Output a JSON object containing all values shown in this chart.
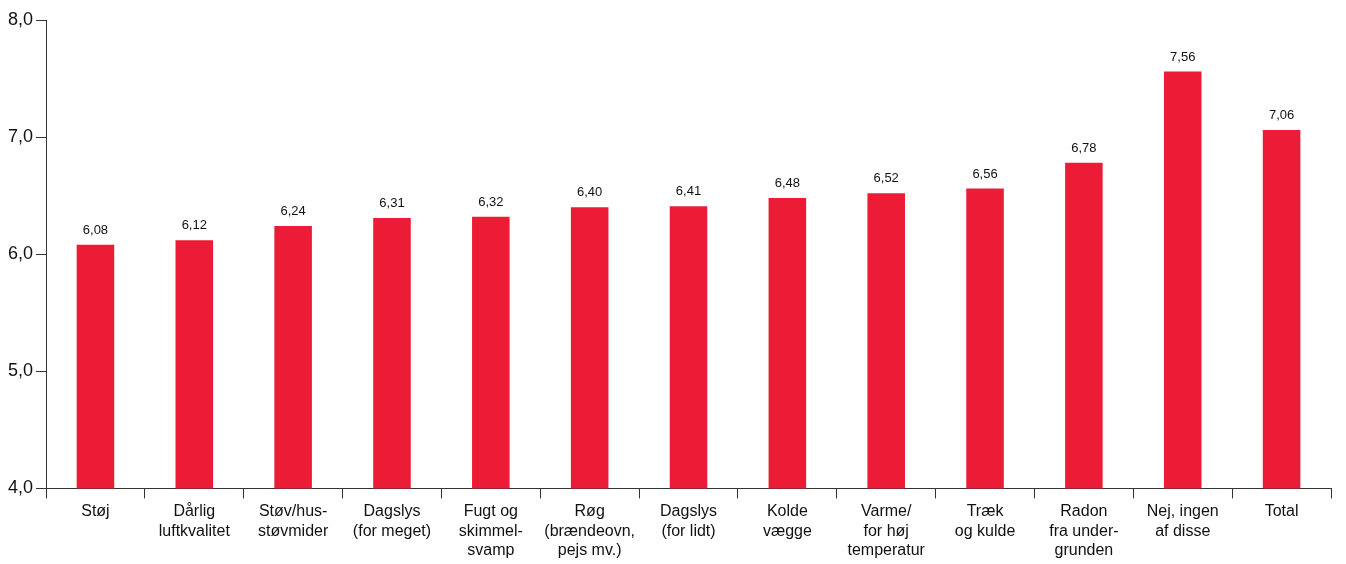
{
  "chart_data": {
    "type": "bar",
    "categories": [
      "Støj",
      "Dårlig\nluftkvalitet",
      "Støv/hus-\nstøvmider",
      "Dagslys\n(for meget)",
      "Fugt og\nskimmel-\nsvamp",
      "Røg\n(brændeovn,\npejs mv.)",
      "Dagslys\n(for lidt)",
      "Kolde\nvægge",
      "Varme/\nfor høj\ntemperatur",
      "Træk\nog kulde",
      "Radon\nfra under-\ngrunden",
      "Nej, ingen\naf disse",
      "Total"
    ],
    "values": [
      6.08,
      6.12,
      6.24,
      6.31,
      6.32,
      6.4,
      6.41,
      6.48,
      6.52,
      6.56,
      6.78,
      7.56,
      7.06
    ],
    "value_labels": [
      "6,08",
      "6,12",
      "6,24",
      "6,31",
      "6,32",
      "6,40",
      "6,41",
      "6,48",
      "6,52",
      "6,56",
      "6,78",
      "7,56",
      "7,06"
    ],
    "color": "#ed1c36",
    "ylim": [
      4,
      8
    ],
    "yticks": [
      {
        "value": 4,
        "label": "4,0"
      },
      {
        "value": 5,
        "label": "5,0"
      },
      {
        "value": 6,
        "label": "6,0"
      },
      {
        "value": 7,
        "label": "7,0"
      },
      {
        "value": 8,
        "label": "8,0"
      }
    ],
    "grid": false,
    "legend": false
  }
}
